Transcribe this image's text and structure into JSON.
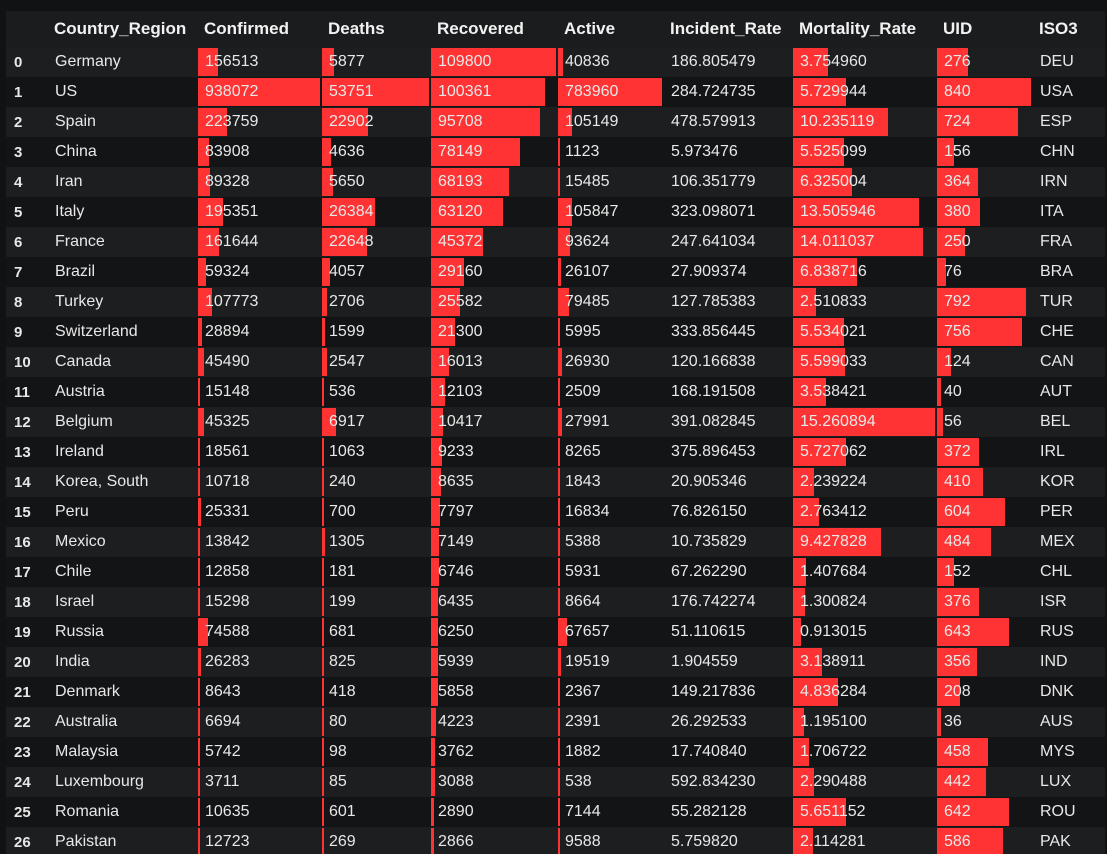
{
  "colors": {
    "background": "#111214",
    "row_odd": "#1c1e20",
    "row_even": "#131416",
    "bar": "#ff3333",
    "text": "#e8e8e8"
  },
  "table": {
    "columns": [
      {
        "key": "index",
        "label": "",
        "kind": "index"
      },
      {
        "key": "country",
        "label": "Country_Region",
        "kind": "text"
      },
      {
        "key": "confirmed",
        "label": "Confirmed",
        "kind": "bar"
      },
      {
        "key": "deaths",
        "label": "Deaths",
        "kind": "bar"
      },
      {
        "key": "recovered",
        "label": "Recovered",
        "kind": "bar"
      },
      {
        "key": "active",
        "label": "Active",
        "kind": "bar"
      },
      {
        "key": "incident_rate",
        "label": "Incident_Rate",
        "kind": "text"
      },
      {
        "key": "mortality_rate",
        "label": "Mortality_Rate",
        "kind": "bar"
      },
      {
        "key": "uid",
        "label": "UID",
        "kind": "bar"
      },
      {
        "key": "iso3",
        "label": "ISO3",
        "kind": "text"
      }
    ],
    "rows": [
      {
        "index": "0",
        "country": "Germany",
        "confirmed": "156513",
        "deaths": "5877",
        "recovered": "109800",
        "active": "40836",
        "incident_rate": "186.805479",
        "mortality_rate": "3.754960",
        "uid": "276",
        "iso3": "DEU"
      },
      {
        "index": "1",
        "country": "US",
        "confirmed": "938072",
        "deaths": "53751",
        "recovered": "100361",
        "active": "783960",
        "incident_rate": "284.724735",
        "mortality_rate": "5.729944",
        "uid": "840",
        "iso3": "USA"
      },
      {
        "index": "2",
        "country": "Spain",
        "confirmed": "223759",
        "deaths": "22902",
        "recovered": "95708",
        "active": "105149",
        "incident_rate": "478.579913",
        "mortality_rate": "10.235119",
        "uid": "724",
        "iso3": "ESP"
      },
      {
        "index": "3",
        "country": "China",
        "confirmed": "83908",
        "deaths": "4636",
        "recovered": "78149",
        "active": "1123",
        "incident_rate": "5.973476",
        "mortality_rate": "5.525099",
        "uid": "156",
        "iso3": "CHN"
      },
      {
        "index": "4",
        "country": "Iran",
        "confirmed": "89328",
        "deaths": "5650",
        "recovered": "68193",
        "active": "15485",
        "incident_rate": "106.351779",
        "mortality_rate": "6.325004",
        "uid": "364",
        "iso3": "IRN"
      },
      {
        "index": "5",
        "country": "Italy",
        "confirmed": "195351",
        "deaths": "26384",
        "recovered": "63120",
        "active": "105847",
        "incident_rate": "323.098071",
        "mortality_rate": "13.505946",
        "uid": "380",
        "iso3": "ITA"
      },
      {
        "index": "6",
        "country": "France",
        "confirmed": "161644",
        "deaths": "22648",
        "recovered": "45372",
        "active": "93624",
        "incident_rate": "247.641034",
        "mortality_rate": "14.011037",
        "uid": "250",
        "iso3": "FRA"
      },
      {
        "index": "7",
        "country": "Brazil",
        "confirmed": "59324",
        "deaths": "4057",
        "recovered": "29160",
        "active": "26107",
        "incident_rate": "27.909374",
        "mortality_rate": "6.838716",
        "uid": "76",
        "iso3": "BRA"
      },
      {
        "index": "8",
        "country": "Turkey",
        "confirmed": "107773",
        "deaths": "2706",
        "recovered": "25582",
        "active": "79485",
        "incident_rate": "127.785383",
        "mortality_rate": "2.510833",
        "uid": "792",
        "iso3": "TUR"
      },
      {
        "index": "9",
        "country": "Switzerland",
        "confirmed": "28894",
        "deaths": "1599",
        "recovered": "21300",
        "active": "5995",
        "incident_rate": "333.856445",
        "mortality_rate": "5.534021",
        "uid": "756",
        "iso3": "CHE"
      },
      {
        "index": "10",
        "country": "Canada",
        "confirmed": "45490",
        "deaths": "2547",
        "recovered": "16013",
        "active": "26930",
        "incident_rate": "120.166838",
        "mortality_rate": "5.599033",
        "uid": "124",
        "iso3": "CAN"
      },
      {
        "index": "11",
        "country": "Austria",
        "confirmed": "15148",
        "deaths": "536",
        "recovered": "12103",
        "active": "2509",
        "incident_rate": "168.191508",
        "mortality_rate": "3.538421",
        "uid": "40",
        "iso3": "AUT"
      },
      {
        "index": "12",
        "country": "Belgium",
        "confirmed": "45325",
        "deaths": "6917",
        "recovered": "10417",
        "active": "27991",
        "incident_rate": "391.082845",
        "mortality_rate": "15.260894",
        "uid": "56",
        "iso3": "BEL"
      },
      {
        "index": "13",
        "country": "Ireland",
        "confirmed": "18561",
        "deaths": "1063",
        "recovered": "9233",
        "active": "8265",
        "incident_rate": "375.896453",
        "mortality_rate": "5.727062",
        "uid": "372",
        "iso3": "IRL"
      },
      {
        "index": "14",
        "country": "Korea, South",
        "confirmed": "10718",
        "deaths": "240",
        "recovered": "8635",
        "active": "1843",
        "incident_rate": "20.905346",
        "mortality_rate": "2.239224",
        "uid": "410",
        "iso3": "KOR"
      },
      {
        "index": "15",
        "country": "Peru",
        "confirmed": "25331",
        "deaths": "700",
        "recovered": "7797",
        "active": "16834",
        "incident_rate": "76.826150",
        "mortality_rate": "2.763412",
        "uid": "604",
        "iso3": "PER"
      },
      {
        "index": "16",
        "country": "Mexico",
        "confirmed": "13842",
        "deaths": "1305",
        "recovered": "7149",
        "active": "5388",
        "incident_rate": "10.735829",
        "mortality_rate": "9.427828",
        "uid": "484",
        "iso3": "MEX"
      },
      {
        "index": "17",
        "country": "Chile",
        "confirmed": "12858",
        "deaths": "181",
        "recovered": "6746",
        "active": "5931",
        "incident_rate": "67.262290",
        "mortality_rate": "1.407684",
        "uid": "152",
        "iso3": "CHL"
      },
      {
        "index": "18",
        "country": "Israel",
        "confirmed": "15298",
        "deaths": "199",
        "recovered": "6435",
        "active": "8664",
        "incident_rate": "176.742274",
        "mortality_rate": "1.300824",
        "uid": "376",
        "iso3": "ISR"
      },
      {
        "index": "19",
        "country": "Russia",
        "confirmed": "74588",
        "deaths": "681",
        "recovered": "6250",
        "active": "67657",
        "incident_rate": "51.110615",
        "mortality_rate": "0.913015",
        "uid": "643",
        "iso3": "RUS"
      },
      {
        "index": "20",
        "country": "India",
        "confirmed": "26283",
        "deaths": "825",
        "recovered": "5939",
        "active": "19519",
        "incident_rate": "1.904559",
        "mortality_rate": "3.138911",
        "uid": "356",
        "iso3": "IND"
      },
      {
        "index": "21",
        "country": "Denmark",
        "confirmed": "8643",
        "deaths": "418",
        "recovered": "5858",
        "active": "2367",
        "incident_rate": "149.217836",
        "mortality_rate": "4.836284",
        "uid": "208",
        "iso3": "DNK"
      },
      {
        "index": "22",
        "country": "Australia",
        "confirmed": "6694",
        "deaths": "80",
        "recovered": "4223",
        "active": "2391",
        "incident_rate": "26.292533",
        "mortality_rate": "1.195100",
        "uid": "36",
        "iso3": "AUS"
      },
      {
        "index": "23",
        "country": "Malaysia",
        "confirmed": "5742",
        "deaths": "98",
        "recovered": "3762",
        "active": "1882",
        "incident_rate": "17.740840",
        "mortality_rate": "1.706722",
        "uid": "458",
        "iso3": "MYS"
      },
      {
        "index": "24",
        "country": "Luxembourg",
        "confirmed": "3711",
        "deaths": "85",
        "recovered": "3088",
        "active": "538",
        "incident_rate": "592.834230",
        "mortality_rate": "2.290488",
        "uid": "442",
        "iso3": "LUX"
      },
      {
        "index": "25",
        "country": "Romania",
        "confirmed": "10635",
        "deaths": "601",
        "recovered": "2890",
        "active": "7144",
        "incident_rate": "55.282128",
        "mortality_rate": "5.651152",
        "uid": "642",
        "iso3": "ROU"
      },
      {
        "index": "26",
        "country": "Pakistan",
        "confirmed": "12723",
        "deaths": "269",
        "recovered": "2866",
        "active": "9588",
        "incident_rate": "5.759820",
        "mortality_rate": "2.114281",
        "uid": "586",
        "iso3": "PAK"
      }
    ]
  }
}
